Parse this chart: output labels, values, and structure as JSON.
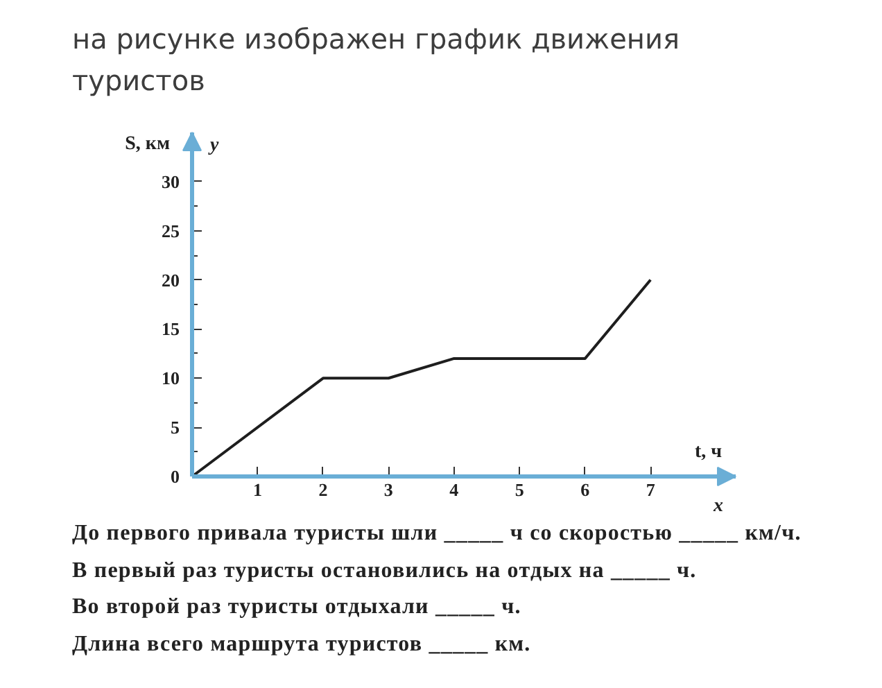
{
  "chart_data": {
    "type": "line",
    "title": "на рисунке изображен график движения туристов",
    "xlabel": "t, ч",
    "ylabel": "S, км",
    "x": [
      0,
      2,
      3,
      4,
      6,
      7
    ],
    "values": [
      0,
      10,
      10,
      12,
      12,
      20
    ],
    "color": "#1e1e1e",
    "xlim": [
      0,
      8.3
    ],
    "ylim": [
      0,
      35
    ],
    "xticks": [
      1,
      2,
      3,
      4,
      5,
      6,
      7
    ],
    "yticks": [
      0,
      {
        "value": 2.5,
        "label": null
      },
      5,
      {
        "value": 7.5,
        "label": null
      },
      10,
      {
        "value": 12.5,
        "label": null
      },
      15,
      {
        "value": 17.5,
        "label": null
      },
      20,
      {
        "value": 22.5,
        "label": null
      },
      25,
      {
        "value": 27.5,
        "label": null
      },
      30
    ],
    "grid": false,
    "marker": "none",
    "line_style": "solid",
    "annotations": [
      "y",
      "x",
      "До первого привала туристы шли _____ ч со скоростью _____ км/ч.",
      "В первый раз туристы остановились на отдых на _____ ч.",
      "Во второй раз туристы отдыхали _____ ч.",
      "Длина всего маршрута туристов _____ км."
    ]
  }
}
